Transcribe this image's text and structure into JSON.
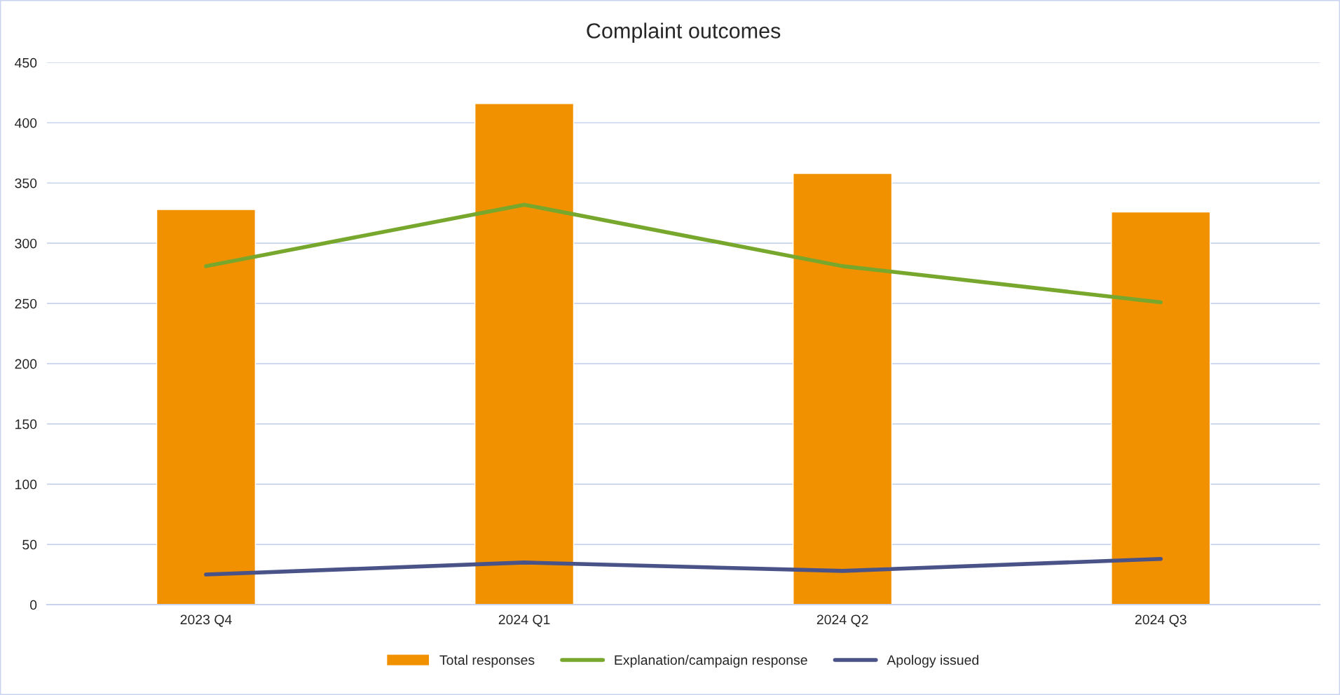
{
  "chart_data": {
    "type": "bar",
    "title": "Complaint outcomes",
    "categories": [
      "2023 Q4",
      "2024 Q1",
      "2024 Q2",
      "2024 Q3"
    ],
    "series": [
      {
        "name": "Total responses",
        "color": "#f29100",
        "values": [
          328,
          416,
          358,
          326
        ]
      },
      {
        "name": "Explanation/campaign response",
        "type": "line",
        "color": "#77a82d",
        "values": [
          281,
          332,
          281,
          251
        ]
      },
      {
        "name": "Apology issued",
        "type": "line",
        "color": "#4a5388",
        "values": [
          25,
          35,
          28,
          38
        ]
      }
    ],
    "ylim": [
      0,
      450
    ],
    "yticks": [
      0,
      50,
      100,
      150,
      200,
      250,
      300,
      350,
      400,
      450
    ],
    "grid": "y",
    "legend": "bottom",
    "marker": "none",
    "line_style": "solid"
  }
}
